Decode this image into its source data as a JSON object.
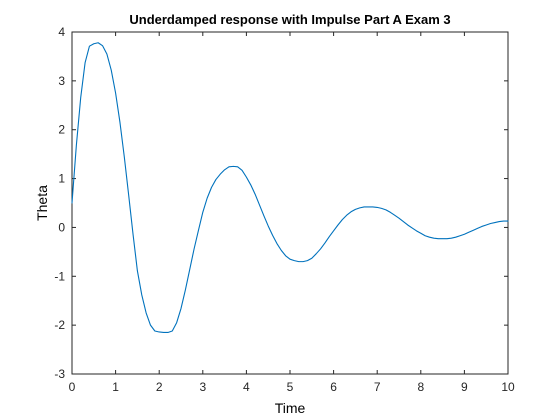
{
  "chart_data": {
    "type": "line",
    "title": "Underdamped response with Impulse Part A Exam 3",
    "xlabel": "Time",
    "ylabel": "Theta",
    "xlim": [
      0,
      10
    ],
    "ylim": [
      -3,
      4
    ],
    "xticks": [
      "0",
      "1",
      "2",
      "3",
      "4",
      "5",
      "6",
      "7",
      "8",
      "9",
      "10"
    ],
    "yticks": [
      "-3",
      "-2",
      "-1",
      "0",
      "1",
      "2",
      "3",
      "4"
    ],
    "grid": false,
    "line_color": "#0072BD",
    "series": [
      {
        "x": [
          0,
          0.1,
          0.2,
          0.3,
          0.4,
          0.5,
          0.6,
          0.7,
          0.8,
          0.9,
          1.0,
          1.1,
          1.2,
          1.3,
          1.4,
          1.5,
          1.6,
          1.7,
          1.8,
          1.9,
          2.0,
          2.1,
          2.2,
          2.3,
          2.4,
          2.5,
          2.6,
          2.7,
          2.8,
          2.9,
          3.0,
          3.1,
          3.2,
          3.3,
          3.4,
          3.5,
          3.6,
          3.7,
          3.8,
          3.9,
          4.0,
          4.1,
          4.2,
          4.3,
          4.4,
          4.5,
          4.6,
          4.7,
          4.8,
          4.9,
          5.0,
          5.1,
          5.2,
          5.3,
          5.4,
          5.5,
          5.6,
          5.7,
          5.8,
          5.9,
          6.0,
          6.1,
          6.2,
          6.3,
          6.4,
          6.5,
          6.6,
          6.7,
          6.8,
          6.9,
          7.0,
          7.1,
          7.2,
          7.3,
          7.4,
          7.5,
          7.6,
          7.7,
          7.8,
          7.9,
          8.0,
          8.1,
          8.2,
          8.3,
          8.4,
          8.5,
          8.6,
          8.7,
          8.8,
          8.9,
          9.0,
          9.1,
          9.2,
          9.3,
          9.4,
          9.5,
          9.6,
          9.7,
          9.8,
          9.9,
          10.0
        ],
        "y": [
          0.5,
          1.68,
          2.66,
          3.37,
          3.71,
          3.76,
          3.78,
          3.72,
          3.55,
          3.22,
          2.75,
          2.15,
          1.44,
          0.66,
          -0.14,
          -0.89,
          -1.38,
          -1.75,
          -2.0,
          -2.12,
          -2.14,
          -2.15,
          -2.15,
          -2.12,
          -1.95,
          -1.66,
          -1.28,
          -0.86,
          -0.44,
          -0.06,
          0.31,
          0.6,
          0.82,
          0.98,
          1.09,
          1.18,
          1.24,
          1.25,
          1.24,
          1.17,
          1.03,
          0.87,
          0.68,
          0.46,
          0.24,
          0.03,
          -0.16,
          -0.33,
          -0.47,
          -0.58,
          -0.65,
          -0.68,
          -0.7,
          -0.7,
          -0.68,
          -0.63,
          -0.54,
          -0.44,
          -0.32,
          -0.19,
          -0.07,
          0.05,
          0.16,
          0.25,
          0.32,
          0.37,
          0.4,
          0.42,
          0.42,
          0.42,
          0.41,
          0.39,
          0.36,
          0.31,
          0.25,
          0.19,
          0.12,
          0.05,
          -0.01,
          -0.07,
          -0.12,
          -0.17,
          -0.2,
          -0.22,
          -0.23,
          -0.23,
          -0.23,
          -0.22,
          -0.2,
          -0.17,
          -0.14,
          -0.1,
          -0.06,
          -0.02,
          0.02,
          0.05,
          0.08,
          0.1,
          0.12,
          0.13,
          0.13
        ]
      }
    ]
  }
}
